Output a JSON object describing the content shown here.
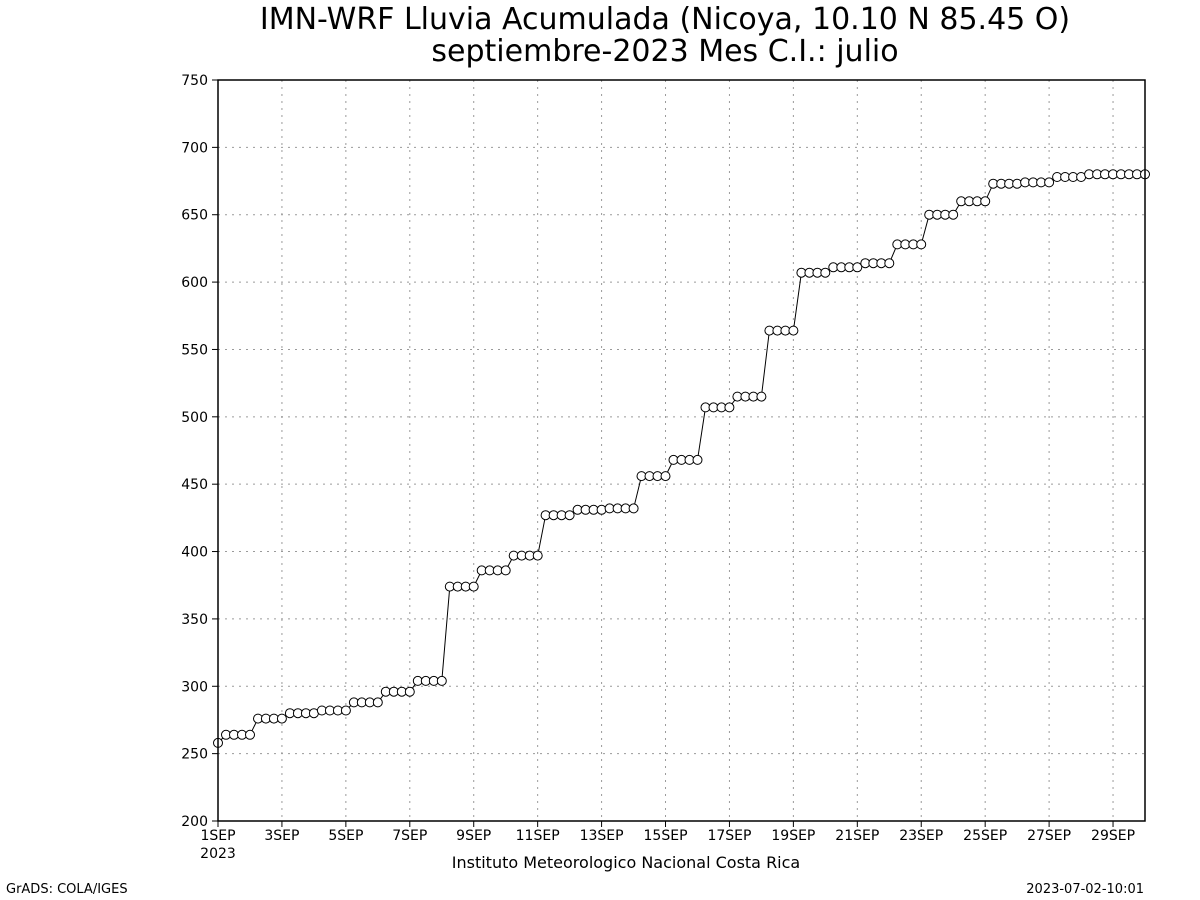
{
  "title_line1": "IMN-WRF  Lluvia Acumulada (Nicoya, 10.10  N 85.45  O)",
  "title_line2": "septiembre-2023 Mes C.I.: julio",
  "credit": "Instituto Meteorologico Nacional Costa Rica",
  "footer_left": "GrADS: COLA/IGES",
  "footer_right": "2023-07-02-10:01",
  "chart_data": {
    "type": "line",
    "title": "IMN-WRF  Lluvia Acumulada (Nicoya, 10.10  N 85.45  O)",
    "subtitle": "septiembre-2023 Mes C.I.: julio",
    "xlabel": "",
    "ylabel": "",
    "x_unit": "day of September 2023 (4 steps per day, 6-hourly)",
    "xlim": [
      1,
      30
    ],
    "ylim": [
      200,
      750
    ],
    "y_ticks": [
      200,
      250,
      300,
      350,
      400,
      450,
      500,
      550,
      600,
      650,
      700,
      750
    ],
    "x_ticks": [
      {
        "day": 1,
        "label": "1SEP",
        "sublabel": "2023"
      },
      {
        "day": 3,
        "label": "3SEP"
      },
      {
        "day": 5,
        "label": "5SEP"
      },
      {
        "day": 7,
        "label": "7SEP"
      },
      {
        "day": 9,
        "label": "9SEP"
      },
      {
        "day": 11,
        "label": "11SEP"
      },
      {
        "day": 13,
        "label": "13SEP"
      },
      {
        "day": 15,
        "label": "15SEP"
      },
      {
        "day": 17,
        "label": "17SEP"
      },
      {
        "day": 19,
        "label": "19SEP"
      },
      {
        "day": 21,
        "label": "21SEP"
      },
      {
        "day": 23,
        "label": "23SEP"
      },
      {
        "day": 25,
        "label": "25SEP"
      },
      {
        "day": 27,
        "label": "27SEP"
      },
      {
        "day": 29,
        "label": "29SEP"
      }
    ],
    "grid": true,
    "marker": "open-circle",
    "series": [
      {
        "values": [
          258,
          264,
          264,
          264,
          264,
          276,
          276,
          276,
          276,
          280,
          280,
          280,
          280,
          282,
          282,
          282,
          282,
          288,
          288,
          288,
          288,
          296,
          296,
          296,
          296,
          304,
          304,
          304,
          304,
          374,
          374,
          374,
          374,
          386,
          386,
          386,
          386,
          397,
          397,
          397,
          397,
          427,
          427,
          427,
          427,
          431,
          431,
          431,
          431,
          432,
          432,
          432,
          432,
          456,
          456,
          456,
          456,
          468,
          468,
          468,
          468,
          507,
          507,
          507,
          507,
          515,
          515,
          515,
          515,
          564,
          564,
          564,
          564,
          607,
          607,
          607,
          607,
          611,
          611,
          611,
          611,
          614,
          614,
          614,
          614,
          628,
          628,
          628,
          628,
          650,
          650,
          650,
          650,
          660,
          660,
          660,
          660,
          673,
          673,
          673,
          673,
          674,
          674,
          674,
          674,
          678,
          678,
          678,
          678,
          680,
          680,
          680,
          680,
          680,
          680,
          680,
          680
        ]
      }
    ]
  }
}
